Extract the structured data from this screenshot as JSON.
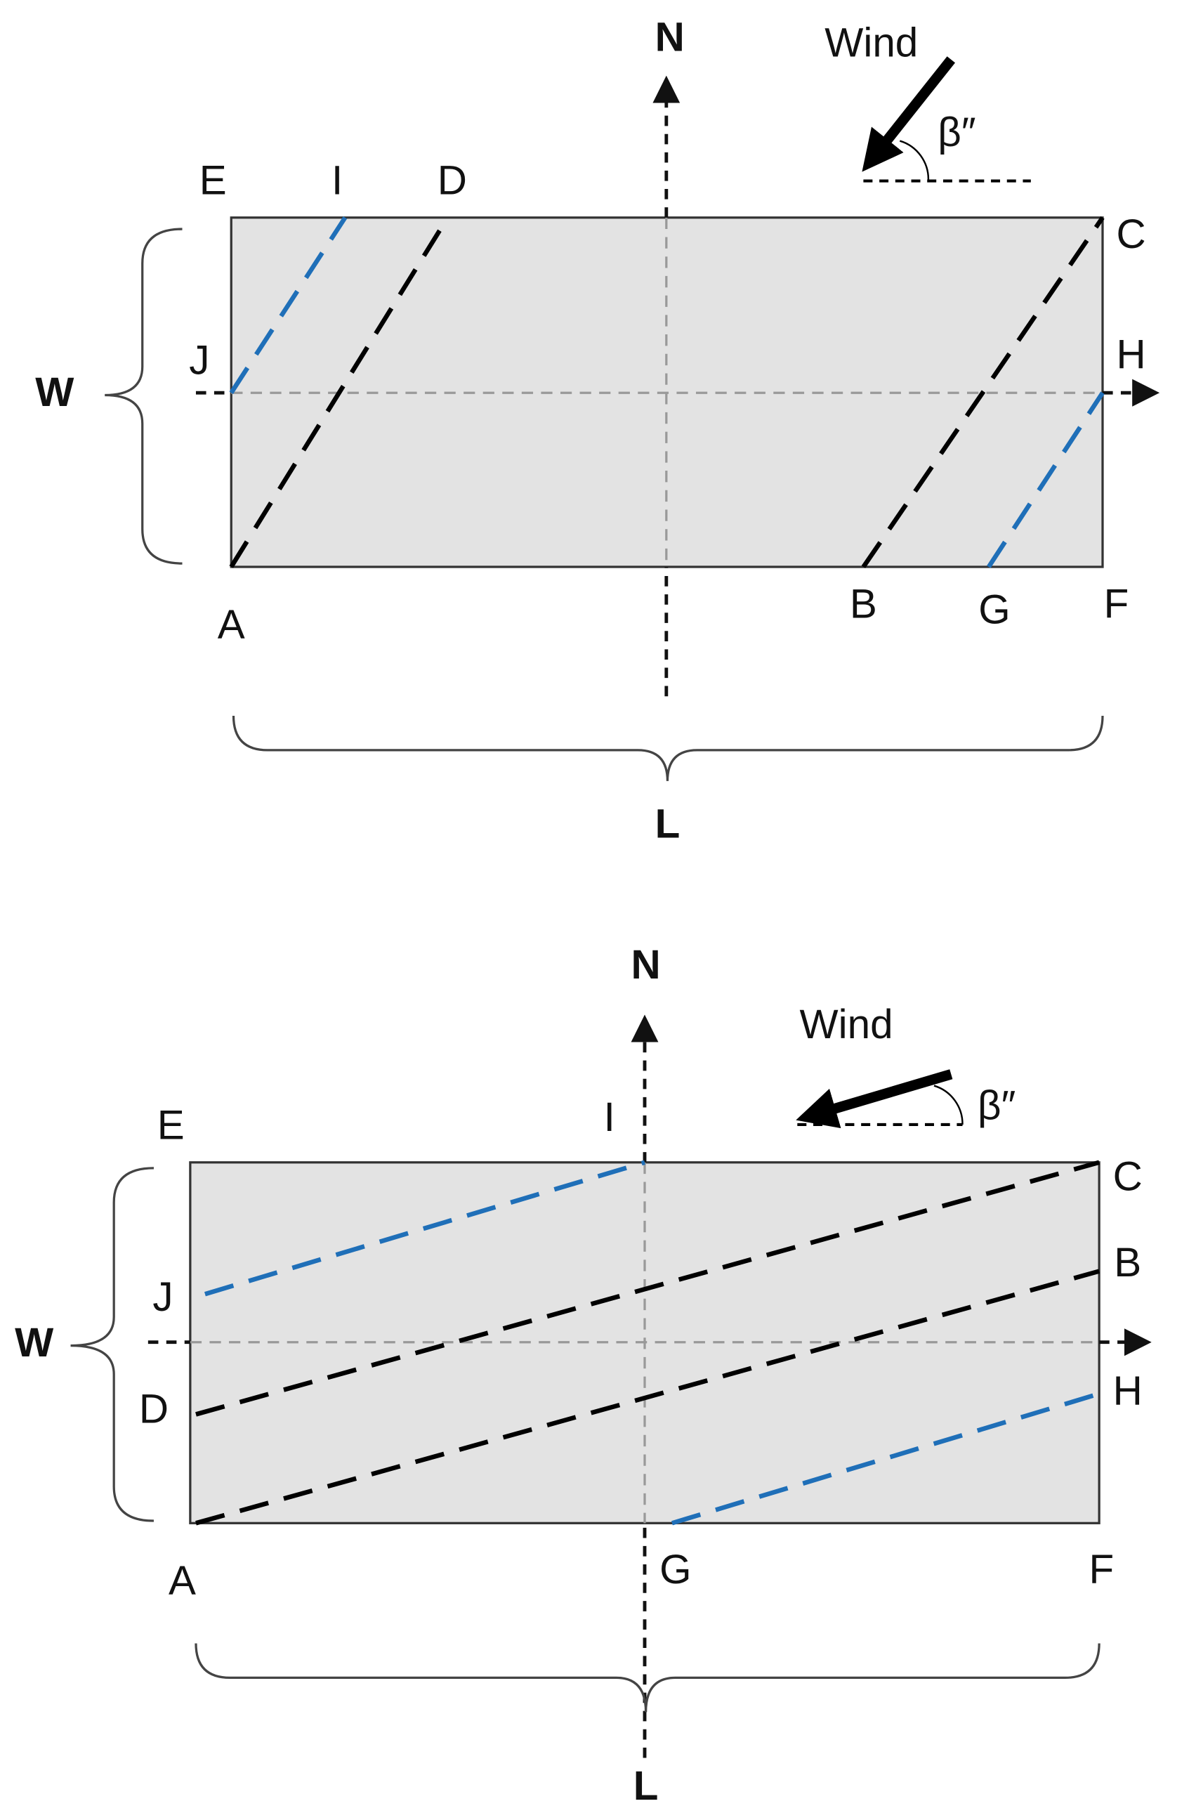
{
  "diagrams": [
    {
      "north": "N",
      "wind": "Wind",
      "angle": "β″",
      "width_label": "W",
      "length_label": "L",
      "points": [
        "E",
        "I",
        "D",
        "C",
        "J",
        "H",
        "A",
        "B",
        "G",
        "F"
      ]
    },
    {
      "north": "N",
      "wind": "Wind",
      "angle": "β″",
      "width_label": "W",
      "length_label": "L",
      "points": [
        "E",
        "I",
        "C",
        "J",
        "B",
        "D",
        "H",
        "A",
        "G",
        "F"
      ]
    }
  ]
}
